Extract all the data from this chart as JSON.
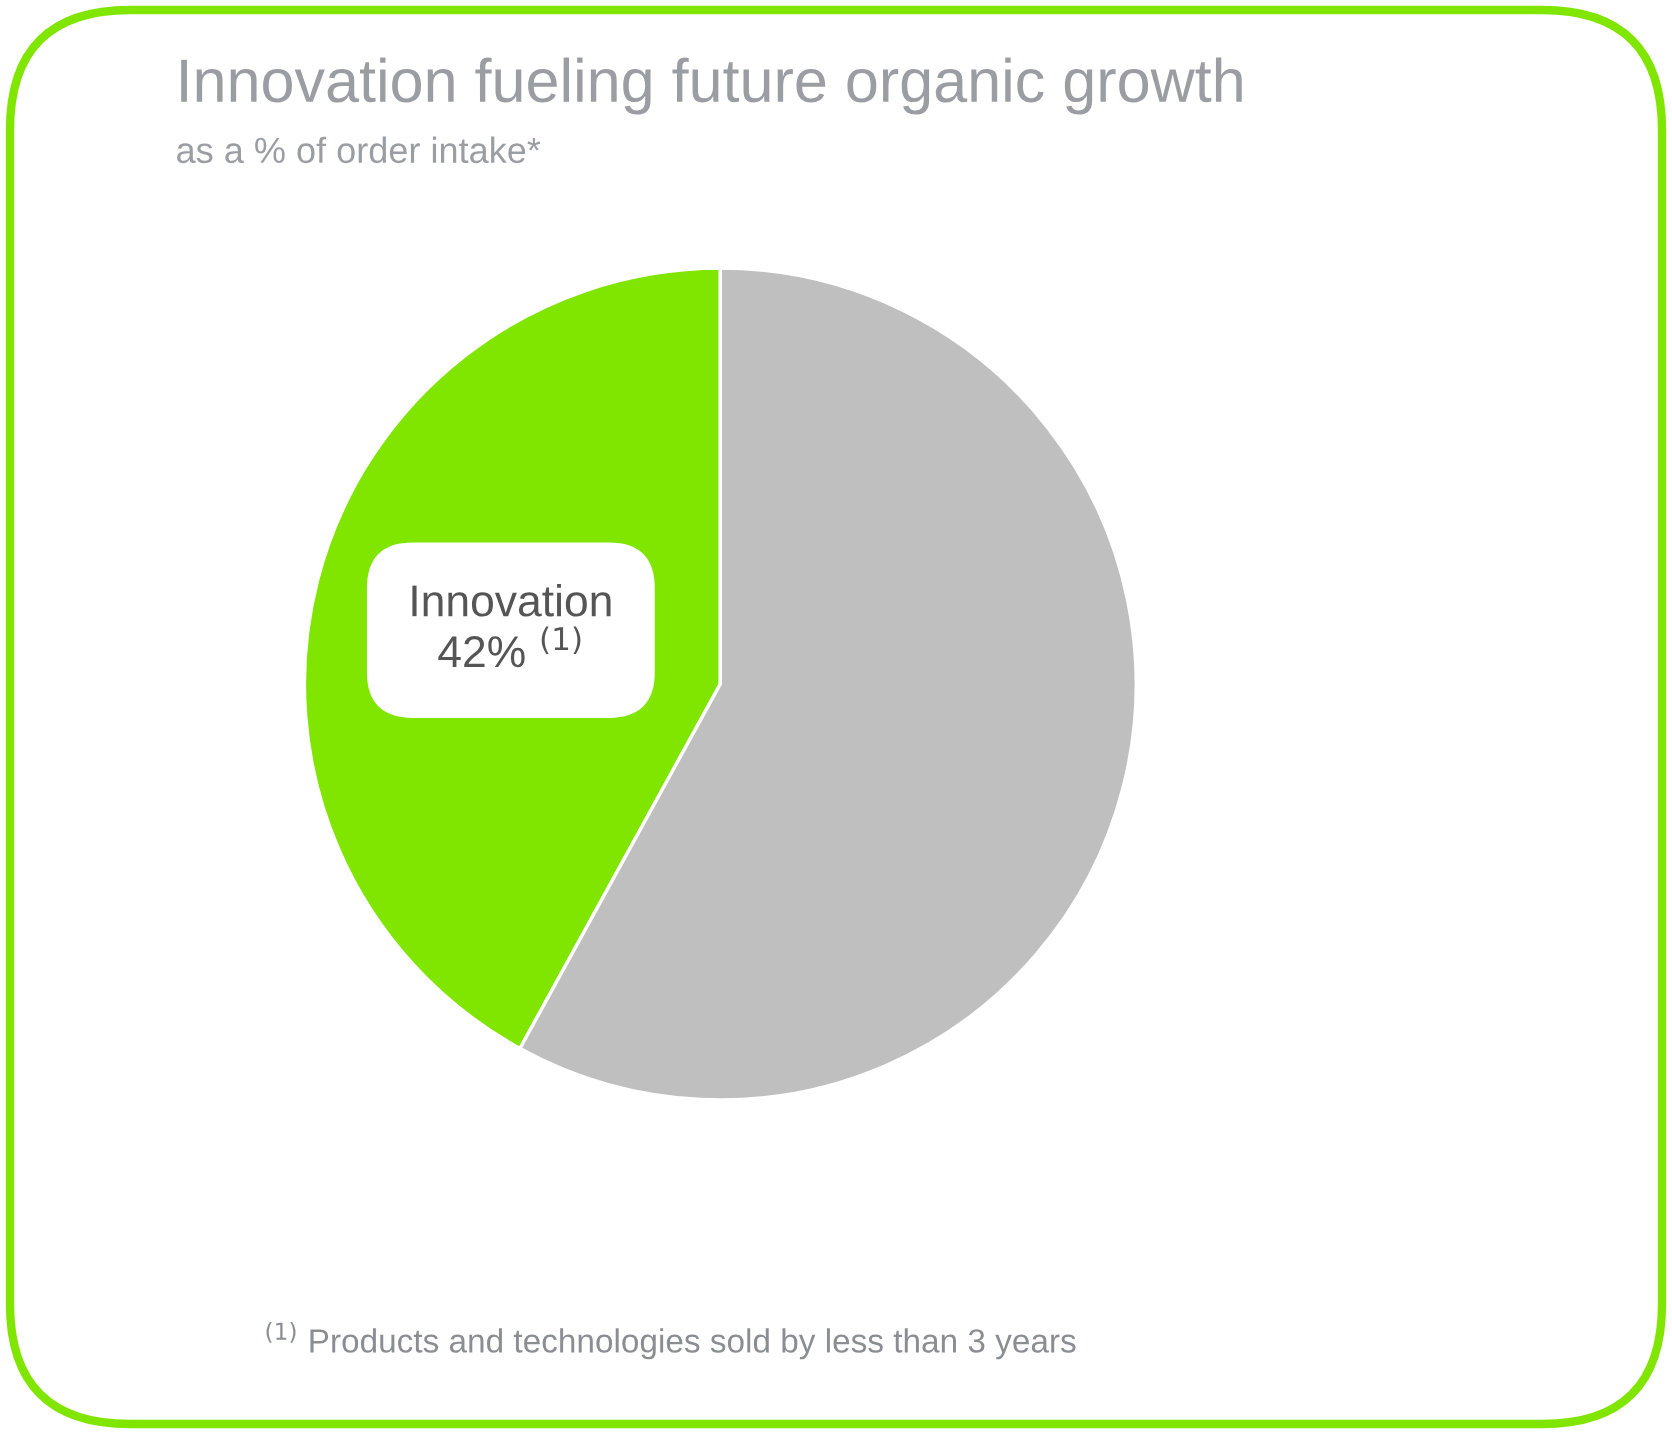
{
  "chart_data": {
    "type": "pie",
    "title": "Innovation fueling future organic growth",
    "subtitle": "as a % of order intake*",
    "categories": [
      "Innovation",
      null
    ],
    "values": [
      42,
      58
    ],
    "colors": [
      "#80e600",
      "#bfbfbf"
    ],
    "value_labels": [
      "42% $^{(1)}$",
      null
    ],
    "annotations": [
      "$^{(1)}$ Products and technologies sold by less than 3 years"
    ]
  }
}
